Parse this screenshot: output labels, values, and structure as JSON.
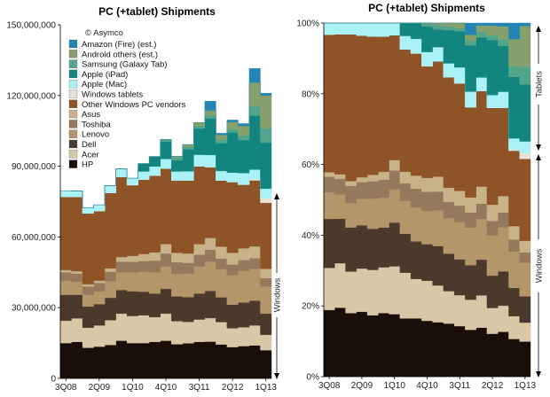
{
  "copyright": "© Asymco",
  "chart_data": [
    {
      "type": "area",
      "title": "PC (+tablet) Shipments",
      "stacked": true,
      "normalized": false,
      "ylim": [
        0,
        150000000
      ],
      "y_ticks": [
        "0",
        "30,000,000",
        "60,000,000",
        "90,000,000",
        "120,000,000",
        "150,000,000"
      ],
      "x_ticks": [
        "3Q08",
        "2Q09",
        "1Q10",
        "4Q10",
        "3Q11",
        "2Q12",
        "1Q13"
      ],
      "legend_placement": "top-left",
      "grid": false
    },
    {
      "type": "area",
      "title": "PC (+tablet) Shipments",
      "stacked": true,
      "normalized": true,
      "ylim": [
        0,
        100
      ],
      "y_ticks": [
        "0%",
        "20%",
        "40%",
        "60%",
        "80%",
        "100%"
      ],
      "x_ticks": [
        "3Q08",
        "2Q09",
        "1Q10",
        "4Q10",
        "3Q11",
        "2Q12",
        "1Q13"
      ],
      "grid": false
    }
  ],
  "series_data": {
    "quarters": [
      "3Q08",
      "4Q08",
      "1Q09",
      "2Q09",
      "3Q09",
      "4Q09",
      "1Q10",
      "2Q10",
      "3Q10",
      "4Q10",
      "1Q11",
      "2Q11",
      "3Q11",
      "4Q11",
      "1Q12",
      "2Q12",
      "3Q12",
      "4Q12",
      "1Q13"
    ],
    "series": [
      {
        "name": "HP",
        "color": "#1a0f08",
        "values": [
          15.0,
          15.5,
          13.0,
          13.5,
          14.2,
          16.0,
          15.0,
          15.0,
          15.5,
          16.0,
          14.5,
          14.9,
          15.5,
          15.6,
          14.4,
          13.3,
          13.7,
          14.0,
          12.0
        ]
      },
      {
        "name": "Acer",
        "color": "#d8c8a8",
        "values": [
          9.5,
          10.0,
          8.5,
          9.0,
          10.5,
          11.5,
          11.5,
          11.8,
          10.5,
          11.5,
          9.8,
          9.1,
          9.5,
          10.0,
          9.5,
          8.0,
          8.0,
          8.5,
          6.5
        ]
      },
      {
        "name": "Dell",
        "color": "#4b3a2c",
        "values": [
          11.0,
          10.0,
          9.0,
          9.0,
          9.5,
          10.0,
          10.5,
          10.0,
          10.0,
          10.5,
          10.5,
          10.5,
          11.0,
          11.5,
          10.5,
          10.0,
          10.5,
          10.5,
          9.0
        ]
      },
      {
        "name": "Lenovo",
        "color": "#b5956a",
        "values": [
          6.0,
          5.5,
          5.0,
          5.5,
          7.0,
          7.5,
          8.0,
          8.5,
          9.0,
          9.5,
          9.5,
          10.0,
          11.5,
          12.5,
          12.0,
          12.5,
          13.5,
          13.5,
          11.5
        ]
      },
      {
        "name": "Toshiba",
        "color": "#96785c",
        "values": [
          3.5,
          3.5,
          3.5,
          3.5,
          4.0,
          4.5,
          4.5,
          4.5,
          5.0,
          5.5,
          5.0,
          4.5,
          5.0,
          5.0,
          4.5,
          4.5,
          4.5,
          4.5,
          3.5
        ]
      },
      {
        "name": "Asus",
        "color": "#c8b28a",
        "values": [
          1.0,
          1.0,
          1.0,
          1.0,
          1.5,
          2.0,
          2.5,
          3.0,
          3.5,
          4.0,
          4.0,
          4.0,
          4.5,
          5.0,
          5.0,
          5.0,
          5.0,
          5.0,
          4.0
        ]
      },
      {
        "name": "Other Windows PC vendors",
        "color": "#8e5428",
        "values": [
          31.0,
          31.5,
          30.0,
          29.5,
          32.0,
          34.0,
          30.0,
          31.5,
          32.5,
          32.0,
          30.7,
          31.0,
          33.0,
          30.0,
          28.1,
          30.0,
          27.0,
          28.0,
          28.0
        ]
      },
      {
        "name": "Windows tablets",
        "color": "#e8e2d8",
        "values": [
          0,
          0,
          0,
          0,
          0,
          0,
          0,
          0,
          0,
          0,
          0,
          0,
          0,
          0,
          0,
          0,
          0,
          0.5,
          2.0
        ]
      },
      {
        "name": "Apple (Mac)",
        "color": "#aaf2f6",
        "values": [
          2.6,
          2.5,
          2.3,
          2.6,
          3.1,
          3.4,
          2.9,
          3.5,
          3.9,
          4.1,
          3.8,
          3.9,
          4.9,
          5.2,
          4.0,
          4.0,
          4.9,
          4.1,
          4.0
        ]
      },
      {
        "name": "Apple (iPad)",
        "color": "#11857e",
        "values": [
          0,
          0,
          0,
          0,
          0,
          0,
          0,
          3.3,
          4.2,
          7.3,
          4.7,
          9.3,
          11.1,
          15.4,
          11.8,
          17.0,
          14.0,
          22.9,
          19.5
        ]
      },
      {
        "name": "Samsung (Galaxy Tab)",
        "color": "#52a48c",
        "values": [
          0,
          0,
          0,
          0,
          0,
          0,
          0,
          0,
          0,
          1.0,
          1.2,
          1.0,
          1.0,
          1.5,
          1.5,
          1.5,
          2.0,
          4.0,
          6.0
        ]
      },
      {
        "name": "Android others (est.)",
        "color": "#86a06c",
        "values": [
          0,
          0,
          0,
          0,
          0,
          0,
          0,
          0,
          0,
          0,
          0.5,
          1.0,
          1.5,
          2.0,
          2.0,
          3.0,
          4.0,
          10.0,
          14.0
        ]
      },
      {
        "name": "Amazon (Fire) (est.)",
        "color": "#2485b5",
        "values": [
          0,
          0,
          0,
          0,
          0,
          0,
          0,
          0,
          0,
          0,
          0,
          0,
          0,
          3.9,
          0.7,
          0.8,
          1.0,
          6.0,
          1.0
        ]
      }
    ]
  },
  "annotations": {
    "windows": "Windows",
    "tablets": "Tablets"
  }
}
